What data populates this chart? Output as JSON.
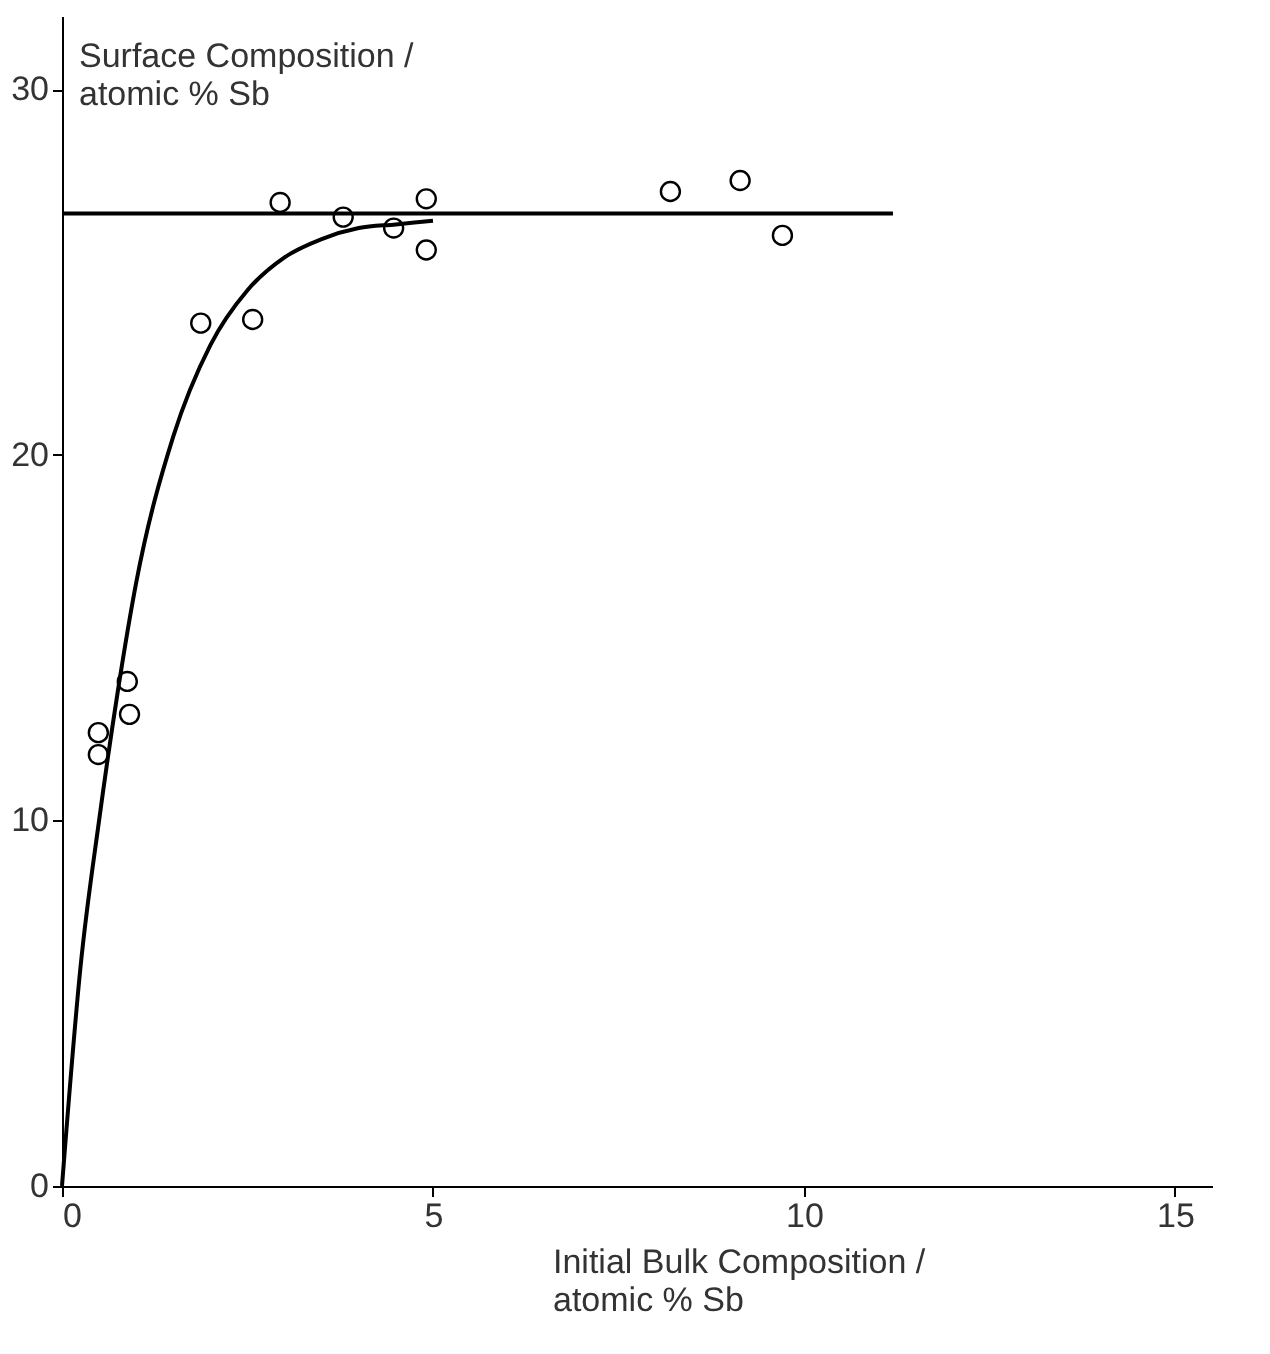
{
  "chart_data": {
    "type": "scatter",
    "xlabel": "Initial Bulk Composition /\natomic % Sb",
    "ylabel": "Surface Composition /\natomic % Sb",
    "xlim": [
      0,
      15.5
    ],
    "ylim": [
      0,
      32
    ],
    "xticks": [
      0,
      5,
      10,
      15
    ],
    "yticks": [
      0,
      10,
      20,
      30
    ],
    "grid": false,
    "marker": "circle",
    "series": [
      {
        "color": "#000000",
        "x": [
          0.49,
          0.49,
          0.88,
          0.91,
          1.87,
          2.57,
          2.94,
          3.79,
          4.47,
          4.91,
          4.91,
          8.2,
          9.14,
          9.71
        ],
        "values": [
          12.4,
          11.8,
          13.8,
          12.9,
          23.6,
          23.7,
          26.9,
          26.5,
          26.2,
          27.0,
          25.6,
          27.2,
          27.5,
          26.0
        ]
      },
      {
        "type": "line",
        "marker": "none",
        "color": "#000000",
        "x": [
          0,
          0.25,
          0.5,
          0.75,
          1,
          1.5,
          2,
          2.5,
          3,
          3.5,
          4,
          4.5,
          5
        ],
        "values": [
          0,
          6,
          10,
          13.5,
          16.5,
          20.5,
          23,
          24.5,
          25.4,
          25.9,
          26.2,
          26.3,
          26.4
        ]
      },
      {
        "type": "line",
        "marker": "none",
        "color": "#000000",
        "x": [
          0,
          11.2
        ],
        "values": [
          26.6,
          26.6
        ]
      }
    ]
  }
}
